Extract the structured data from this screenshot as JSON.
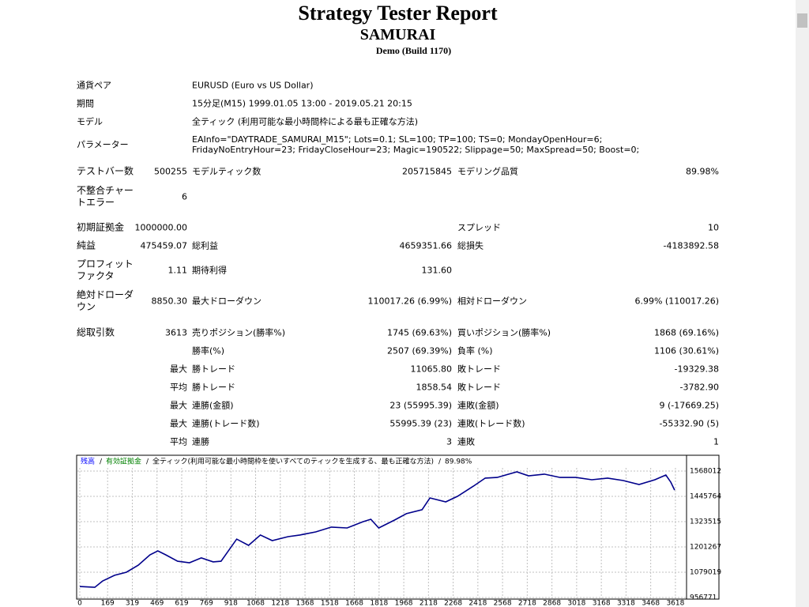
{
  "header": {
    "title": "Strategy Tester Report",
    "expert": "SAMURAI",
    "build": "Demo (Build 1170)"
  },
  "info": [
    {
      "label": "通貨ペア",
      "value": "EURUSD (Euro vs US Dollar)"
    },
    {
      "label": "期間",
      "value": "15分足(M15) 1999.01.05 13:00 - 2019.05.21 20:15"
    },
    {
      "label": "モデル",
      "value": "全ティック (利用可能な最小時間枠による最も正確な方法)"
    },
    {
      "label": "パラメーター",
      "value": "EAInfo=\"DAYTRADE_SAMURAI_M15\"; Lots=0.1; SL=100; TP=100; TS=0; MondayOpenHour=6; FridayNoEntryHour=23; FridayCloseHour=23; Magic=190522; Slippage=50; MaxSpread=50; Boost=0;"
    }
  ],
  "stats": [
    {
      "label1": "テストバー数",
      "value1": "500255",
      "label2": "モデルティック数",
      "value2": "205715845",
      "label3": "モデリング品質",
      "value3": "89.98%"
    },
    {
      "label1": "不整合チャートエラー",
      "value1": "6"
    },
    {
      "label1": "初期証拠金",
      "value1": "1000000.00",
      "label3": "スプレッド",
      "value3": "10"
    },
    {
      "label1": "純益",
      "value1": "475459.07",
      "label2": "総利益",
      "value2": "4659351.66",
      "label3": "総損失",
      "value3": "-4183892.58"
    },
    {
      "label1": "プロフィットファクタ",
      "value1": "1.11",
      "label2": "期待利得",
      "value2": "131.60"
    },
    {
      "label1": "絶対ドローダウン",
      "value1": "8850.30",
      "label2": "最大ドローダウン",
      "value2": "110017.26 (6.99%)",
      "label3": "相対ドローダウン",
      "value3": "6.99% (110017.26)"
    },
    {
      "label1": "総取引数",
      "value1": "3613",
      "label2": "売りポジション(勝率%)",
      "value2": "1745 (69.63%)",
      "label3": "買いポジション(勝率%)",
      "value3": "1868 (69.16%)"
    },
    {
      "label2": "勝率(%)",
      "value2": "2507 (69.39%)",
      "label3": "負率 (%)",
      "value3": "1106 (30.61%)"
    },
    {
      "value1": "最大",
      "label2": "勝トレード",
      "value2": "11065.80",
      "label3": "敗トレード",
      "value3": "-19329.38"
    },
    {
      "value1": "平均",
      "label2": "勝トレード",
      "value2": "1858.54",
      "label3": "敗トレード",
      "value3": "-3782.90"
    },
    {
      "value1": "最大",
      "label2": "連勝(金額)",
      "value2": "23 (55995.39)",
      "label3": "連敗(金額)",
      "value3": "9 (-17669.25)"
    },
    {
      "value1": "最大",
      "label2": "連勝(トレード数)",
      "value2": "55995.39 (23)",
      "label3": "連敗(トレード数)",
      "value3": "-55332.90 (5)"
    },
    {
      "value1": "平均",
      "label2": "連勝",
      "value2": "3",
      "label3": "連敗",
      "value3": "1"
    }
  ],
  "graph": {
    "type": "line",
    "legend": [
      {
        "text": "残高",
        "color": "#0000ff"
      },
      {
        "text": "有効証拠金",
        "color": "#008000"
      },
      {
        "text": "全ティック(利用可能な最小時間枠を使いすべてのティックを生成する、最も正確な方法)",
        "color": "#000000"
      },
      {
        "text": "89.98%",
        "color": "#000000"
      }
    ],
    "color": "#00008b",
    "x": [
      0,
      91,
      139,
      211,
      283,
      355,
      426,
      474,
      522,
      594,
      666,
      738,
      810,
      858,
      953,
      1025,
      1097,
      1169,
      1265,
      1337,
      1433,
      1528,
      1624,
      1720,
      1768,
      1816,
      1912,
      1984,
      2079,
      2127,
      2223,
      2295,
      2391,
      2463,
      2535,
      2655,
      2726,
      2822,
      2918,
      3014,
      3110,
      3206,
      3301,
      3397,
      3493,
      3560,
      3590,
      3613
    ],
    "values": [
      1010000,
      1006000,
      1037000,
      1064000,
      1079000,
      1113000,
      1163000,
      1182000,
      1163000,
      1132000,
      1125000,
      1148000,
      1129000,
      1132000,
      1239000,
      1209000,
      1259000,
      1232000,
      1251000,
      1259000,
      1274000,
      1297000,
      1293000,
      1323000,
      1335000,
      1293000,
      1331000,
      1362000,
      1381000,
      1438000,
      1419000,
      1446000,
      1495000,
      1534000,
      1537000,
      1564000,
      1545000,
      1553000,
      1537000,
      1537000,
      1526000,
      1534000,
      1522000,
      1503000,
      1526000,
      1549000,
      1514000,
      1476000
    ],
    "xlim": [
      0,
      3700
    ],
    "ylim": [
      952951,
      1636731
    ],
    "xticks": [
      0,
      169,
      319,
      469,
      619,
      769,
      918,
      1068,
      1218,
      1368,
      1518,
      1668,
      1818,
      1968,
      2118,
      2268,
      2418,
      2568,
      2718,
      2868,
      3018,
      3168,
      3318,
      3468,
      3618
    ],
    "yticks": [
      956771,
      1079019,
      1201267,
      1323515,
      1445764,
      1568012
    ],
    "grid": true
  }
}
